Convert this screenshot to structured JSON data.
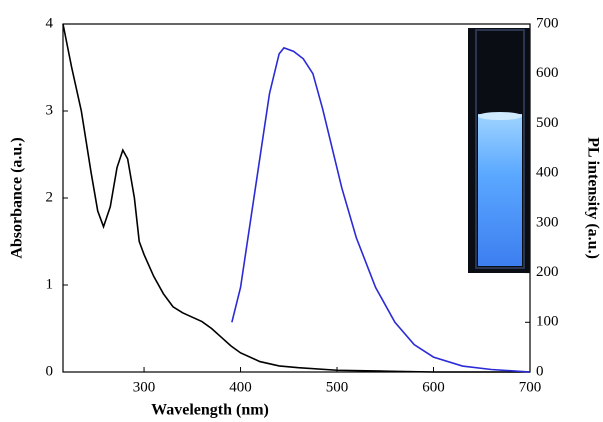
{
  "chart_data": {
    "type": "line",
    "xlabel": "Wavelength (nm)",
    "ylabel": "Absorbance (a.u.)",
    "y2label": "PL intensity (a.u.)",
    "xlim": [
      216,
      700
    ],
    "xticks": [
      300,
      400,
      500,
      600,
      700
    ],
    "ylim": [
      0,
      4
    ],
    "yticks": [
      0,
      1,
      2,
      3,
      4
    ],
    "y2lim": [
      0,
      700
    ],
    "y2ticks": [
      0,
      100,
      200,
      300,
      400,
      500,
      600,
      700
    ],
    "series": [
      {
        "color": "#000000",
        "axis": "y",
        "x": [
          216,
          225,
          235,
          245,
          252,
          258,
          265,
          272,
          278,
          283,
          290,
          295,
          300,
          310,
          320,
          330,
          340,
          350,
          360,
          370,
          380,
          390,
          400,
          420,
          440,
          460,
          500,
          550,
          600,
          700
        ],
        "values": [
          4.0,
          3.5,
          3.0,
          2.3,
          1.85,
          1.67,
          1.9,
          2.35,
          2.55,
          2.45,
          2.0,
          1.5,
          1.35,
          1.1,
          0.9,
          0.75,
          0.68,
          0.63,
          0.58,
          0.5,
          0.4,
          0.3,
          0.22,
          0.12,
          0.07,
          0.05,
          0.02,
          0.01,
          0.0,
          0.0
        ]
      },
      {
        "color": "#2b2bd6",
        "axis": "y2",
        "x": [
          391,
          400,
          410,
          420,
          430,
          440,
          445,
          455,
          465,
          475,
          485,
          495,
          505,
          520,
          540,
          560,
          580,
          600,
          630,
          660,
          700
        ],
        "values": [
          100,
          170,
          300,
          430,
          560,
          640,
          652,
          645,
          630,
          600,
          530,
          450,
          370,
          270,
          170,
          100,
          55,
          30,
          12,
          5,
          0
        ]
      }
    ]
  }
}
